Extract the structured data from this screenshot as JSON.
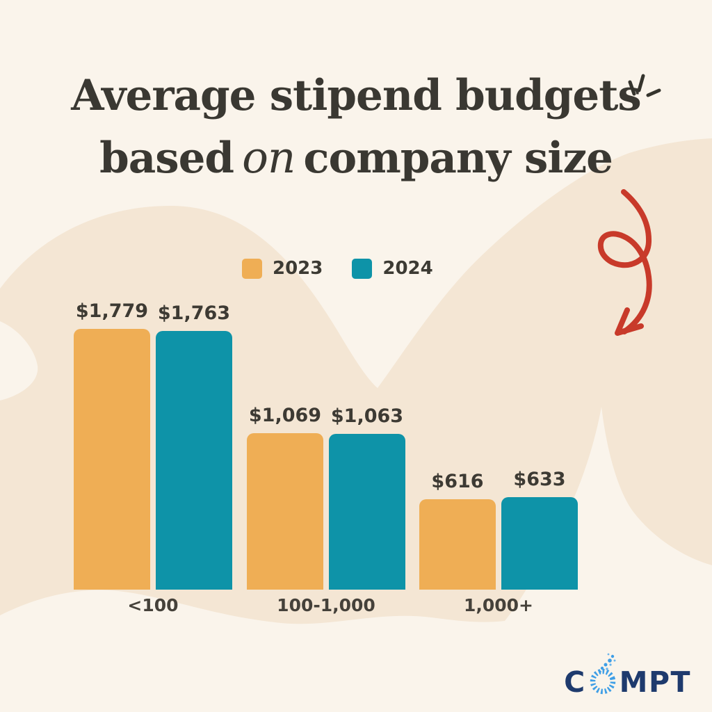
{
  "page": {
    "background_color": "#FAF4EB",
    "blob_color": "#F4E6D4"
  },
  "title": {
    "line1": "Average stipend budgets",
    "line2_pre": "based",
    "line2_script": "on",
    "line2_post": "company size",
    "color": "#3A3832"
  },
  "legend": {
    "items": [
      {
        "label": "2023",
        "color": "#EFAE55"
      },
      {
        "label": "2024",
        "color": "#0E93A8"
      }
    ]
  },
  "chart_data": {
    "type": "bar",
    "title": "Average stipend budgets based on company size",
    "categories": [
      "<100",
      "100-1,000",
      "1,000+"
    ],
    "series": [
      {
        "name": "2023",
        "color": "#EFAE55",
        "values": [
          1779,
          1069,
          616
        ]
      },
      {
        "name": "2024",
        "color": "#0E93A8",
        "values": [
          1763,
          1063,
          633
        ]
      }
    ],
    "value_prefix": "$",
    "value_labels": true,
    "ylim": [
      0,
      1900
    ],
    "grid": false,
    "legend_position": "top-center"
  },
  "decorations": {
    "arrow_color": "#C83A2A",
    "sparkle_color": "#35342D"
  },
  "logo": {
    "prefix": "C",
    "suffix": "MPT",
    "navy": "#1E3A6D",
    "dot_blue": "#3E9EE6"
  }
}
